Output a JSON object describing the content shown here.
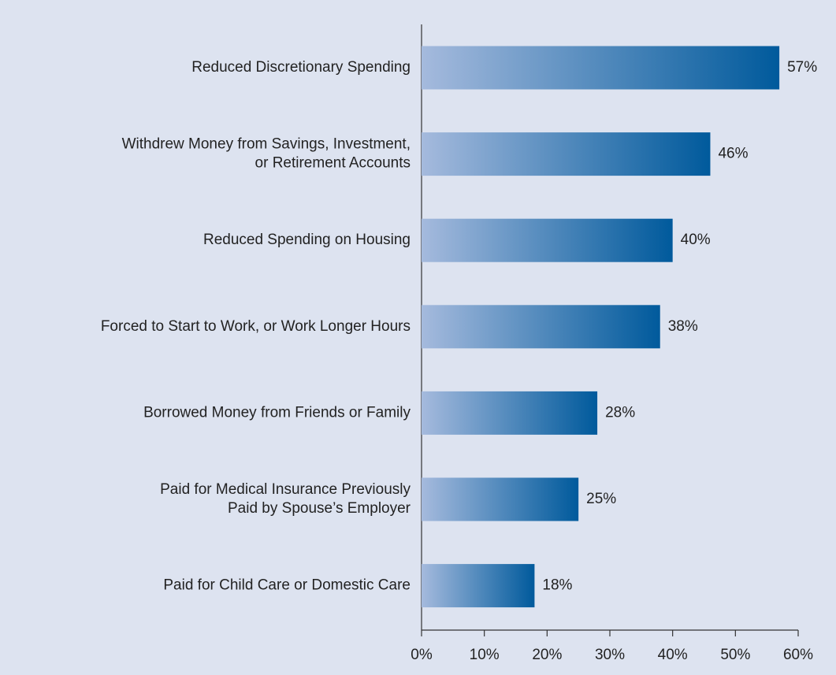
{
  "chart_data": {
    "type": "barh",
    "categories": [
      [
        "Reduced Discretionary Spending"
      ],
      [
        "Withdrew Money from Savings, Investment,",
        "or Retirement Accounts"
      ],
      [
        "Reduced Spending on Housing"
      ],
      [
        "Forced to Start to Work, or Work Longer Hours"
      ],
      [
        "Borrowed Money from Friends or Family"
      ],
      [
        "Paid for Medical Insurance Previously",
        "Paid by Spouse’s Employer"
      ],
      [
        "Paid for Child Care or Domestic Care"
      ]
    ],
    "values": [
      57,
      46,
      40,
      38,
      28,
      25,
      18
    ],
    "value_labels": [
      "57%",
      "46%",
      "40%",
      "38%",
      "28%",
      "25%",
      "18%"
    ],
    "color": [
      "#a5badd",
      "#005a9c"
    ],
    "xlim": [
      0,
      60
    ],
    "xticks": [
      {
        "value": 0,
        "label": "0%"
      },
      {
        "value": 10,
        "label": "10%"
      },
      {
        "value": 20,
        "label": "20%"
      },
      {
        "value": 30,
        "label": "30%"
      },
      {
        "value": 40,
        "label": "40%"
      },
      {
        "value": 50,
        "label": "50%"
      },
      {
        "value": 60,
        "label": "60%"
      }
    ]
  }
}
